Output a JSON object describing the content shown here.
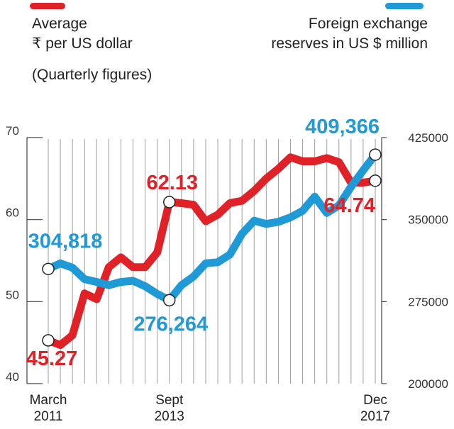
{
  "legend": {
    "left_lines": [
      "Average",
      "₹ per US dollar"
    ],
    "left_note": "(Quarterly figures)",
    "right_lines": [
      "Foreign exchange",
      "reserves in US $ million"
    ]
  },
  "colors": {
    "rupee": "#e02127",
    "reserves": "#1f9ad6",
    "grid": "#9e9e9e",
    "axis": "#444444"
  },
  "chart_data": {
    "type": "line",
    "x": [
      "March 2011",
      "Jun 2011",
      "Sept 2011",
      "Dec 2011",
      "March 2012",
      "Jun 2012",
      "Sept 2012",
      "Dec 2012",
      "March 2013",
      "Jun 2013",
      "Sept 2013",
      "Dec 2013",
      "March 2014",
      "Jun 2014",
      "Sept 2014",
      "Dec 2014",
      "March 2015",
      "Jun 2015",
      "Sept 2015",
      "Dec 2015",
      "March 2016",
      "Jun 2016",
      "Sept 2016",
      "Dec 2016",
      "March 2017",
      "Jun 2017",
      "Sept 2017",
      "Dec 2017"
    ],
    "x_tick_labels": [
      {
        "index": 0,
        "lines": [
          "March",
          "2011"
        ]
      },
      {
        "index": 10,
        "lines": [
          "Sept",
          "2013"
        ]
      },
      {
        "index": 27,
        "lines": [
          "Dec",
          "2017"
        ]
      }
    ],
    "series": [
      {
        "name": "Average ₹ per US dollar",
        "axis": "left",
        "values": [
          45.27,
          44.7,
          45.9,
          51.0,
          50.3,
          54.2,
          55.4,
          54.2,
          54.2,
          56.0,
          62.13,
          62.0,
          61.8,
          59.8,
          60.6,
          62.0,
          62.3,
          63.5,
          65.0,
          66.2,
          67.6,
          67.1,
          67.1,
          67.5,
          67.0,
          64.5,
          64.5,
          64.74
        ]
      },
      {
        "name": "Foreign exchange reserves in US $ million",
        "axis": "right",
        "values": [
          304818,
          310000,
          306000,
          295500,
          293000,
          290000,
          293000,
          294000,
          289000,
          282000,
          276264,
          290000,
          298000,
          310000,
          311000,
          318000,
          337000,
          349000,
          346000,
          348000,
          352000,
          358000,
          371000,
          356000,
          363000,
          380000,
          395000,
          409366
        ]
      }
    ],
    "annotations": [
      {
        "series": 0,
        "index": 0,
        "text": "45.27"
      },
      {
        "series": 0,
        "index": 10,
        "text": "62.13"
      },
      {
        "series": 0,
        "index": 27,
        "text": "64.74"
      },
      {
        "series": 1,
        "index": 0,
        "text": "304,818"
      },
      {
        "series": 1,
        "index": 10,
        "text": "276,264"
      },
      {
        "series": 1,
        "index": 27,
        "text": "409,366"
      }
    ],
    "y_left": {
      "ticks": [
        "70",
        "60",
        "50",
        "40"
      ],
      "ylim": [
        40,
        70
      ]
    },
    "y_right": {
      "ticks": [
        "425000",
        "350000",
        "275000",
        "200000"
      ],
      "ylim": [
        200000,
        425000
      ]
    },
    "grid": "vertical"
  }
}
